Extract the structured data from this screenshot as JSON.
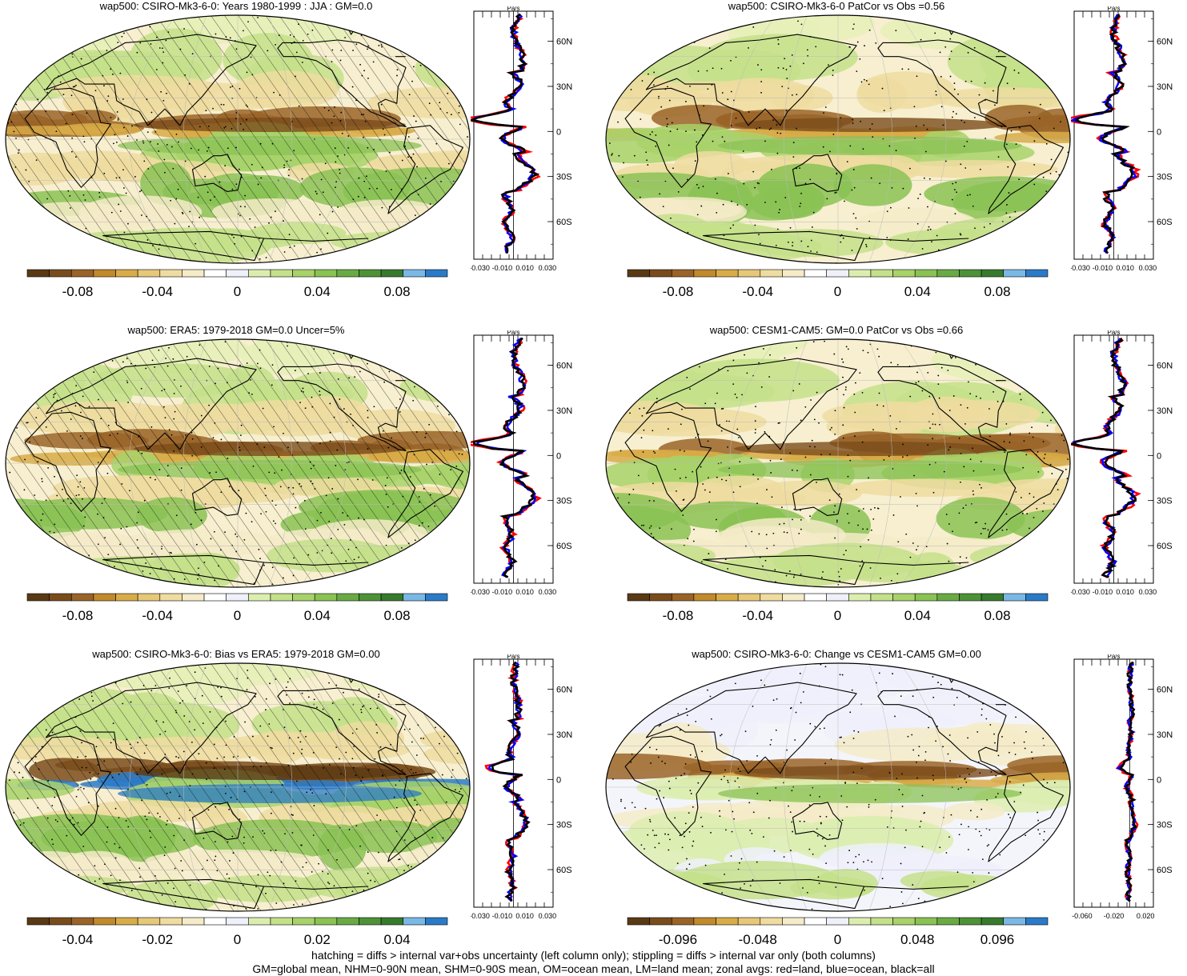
{
  "panels": [
    {
      "id": "p1",
      "title": "wap500: CSIRO-Mk3-6-0: Years 1980-1999 : JJA : GM=0.0",
      "hatching": true,
      "colorbar_ticks": [
        "-0.08",
        "-0.04",
        "0",
        "0.04",
        "0.08"
      ],
      "zonal_units": "Pa/s",
      "zonal_xticks": [
        "-0.030",
        "-0.010",
        "0.010",
        "0.030"
      ],
      "lat_ticks": [
        "60N",
        "30N",
        "0",
        "30S",
        "60S"
      ]
    },
    {
      "id": "p2",
      "title": "wap500: CSIRO-Mk3-6-0 PatCor vs Obs =0.56",
      "hatching": false,
      "colorbar_ticks": [
        "-0.08",
        "-0.04",
        "0",
        "0.04",
        "0.08"
      ],
      "zonal_units": "Pa/s",
      "zonal_xticks": [
        "-0.030",
        "-0.010",
        "0.010",
        "0.030"
      ],
      "lat_ticks": [
        "60N",
        "30N",
        "0",
        "30S",
        "60S"
      ]
    },
    {
      "id": "p3",
      "title": "wap500: ERA5: 1979-2018 GM=0.0 Uncer=5%",
      "hatching": true,
      "colorbar_ticks": [
        "-0.08",
        "-0.04",
        "0",
        "0.04",
        "0.08"
      ],
      "zonal_units": "Pa/s",
      "zonal_xticks": [
        "-0.030",
        "-0.010",
        "0.010",
        "0.030"
      ],
      "lat_ticks": [
        "60N",
        "30N",
        "0",
        "30S",
        "60S"
      ]
    },
    {
      "id": "p4",
      "title": "wap500: CESM1-CAM5: GM=0.0 PatCor vs Obs =0.66",
      "hatching": false,
      "colorbar_ticks": [
        "-0.08",
        "-0.04",
        "0",
        "0.04",
        "0.08"
      ],
      "zonal_units": "Pa/s",
      "zonal_xticks": [
        "-0.030",
        "-0.010",
        "0.010",
        "0.030"
      ],
      "lat_ticks": [
        "60N",
        "30N",
        "0",
        "30S",
        "60S"
      ]
    },
    {
      "id": "p5",
      "title": "wap500: CSIRO-Mk3-6-0: Bias vs ERA5: 1979-2018 GM=0.00",
      "hatching": true,
      "colorbar_ticks": [
        "-0.04",
        "-0.02",
        "0",
        "0.02",
        "0.04"
      ],
      "zonal_units": "Pa/s",
      "zonal_xticks": [
        "-0.030",
        "-0.010",
        "0.010",
        "0.030"
      ],
      "lat_ticks": [
        "60N",
        "30N",
        "0",
        "30S",
        "60S"
      ]
    },
    {
      "id": "p6",
      "title": "wap500: CSIRO-Mk3-6-0: Change vs CESM1-CAM5 GM=0.00",
      "hatching": false,
      "colorbar_ticks": [
        "-0.096",
        "-0.048",
        "0",
        "0.048",
        "0.096"
      ],
      "zonal_units": "Pa/s",
      "zonal_xticks": [
        "-0.060",
        "-0.020",
        "0.020"
      ],
      "lat_ticks": [
        "60N",
        "30N",
        "0",
        "30S",
        "60S"
      ]
    }
  ],
  "colorbar_colors": [
    "#5a3a14",
    "#7a4c1c",
    "#9a6428",
    "#c18a2c",
    "#d8ac48",
    "#e6c878",
    "#efdca0",
    "#f5ebc8",
    "#ffffff",
    "#eef0fa",
    "#dcedb0",
    "#c4e08a",
    "#a8d26a",
    "#8ac254",
    "#6aaa44",
    "#4e9238",
    "#377a2e",
    "#7ab8e6",
    "#2a7ac8"
  ],
  "zonal_colors": {
    "land": "#ff0000",
    "ocean": "#0000ff",
    "all": "#000000"
  },
  "footer": {
    "line1": "hatching = diffs > internal var+obs uncertainty (left column only); stippling = diffs > internal var only (both columns)",
    "line2": "GM=global mean, NHM=0-90N mean, SHM=0-90S mean, OM=ocean mean, LM=land mean; zonal avgs: red=land, blue=ocean, black=all"
  },
  "chart_data": [
    {
      "type": "heatmap",
      "title": "wap500: CSIRO-Mk3-6-0: Years 1980-1999 : JJA : GM=0.0",
      "colorbar_ticks": [
        -0.08,
        -0.04,
        0,
        0.04,
        0.08
      ],
      "zonal_xlim": [
        -0.03,
        0.03
      ]
    },
    {
      "type": "heatmap",
      "title": "wap500: CSIRO-Mk3-6-0 PatCor vs Obs =0.56",
      "colorbar_ticks": [
        -0.08,
        -0.04,
        0,
        0.04,
        0.08
      ],
      "zonal_xlim": [
        -0.03,
        0.03
      ]
    },
    {
      "type": "heatmap",
      "title": "wap500: ERA5: 1979-2018 GM=0.0 Uncer=5%",
      "colorbar_ticks": [
        -0.08,
        -0.04,
        0,
        0.04,
        0.08
      ],
      "zonal_xlim": [
        -0.03,
        0.03
      ]
    },
    {
      "type": "heatmap",
      "title": "wap500: CESM1-CAM5: GM=0.0 PatCor vs Obs =0.66",
      "colorbar_ticks": [
        -0.08,
        -0.04,
        0,
        0.04,
        0.08
      ],
      "zonal_xlim": [
        -0.03,
        0.03
      ]
    },
    {
      "type": "heatmap",
      "title": "wap500: CSIRO-Mk3-6-0: Bias vs ERA5: 1979-2018 GM=0.00",
      "colorbar_ticks": [
        -0.04,
        -0.02,
        0,
        0.02,
        0.04
      ],
      "zonal_xlim": [
        -0.03,
        0.03
      ]
    },
    {
      "type": "heatmap",
      "title": "wap500: CSIRO-Mk3-6-0: Change vs CESM1-CAM5 GM=0.00",
      "colorbar_ticks": [
        -0.096,
        -0.048,
        0,
        0.048,
        0.096
      ],
      "zonal_xlim": [
        -0.06,
        0.02
      ]
    }
  ]
}
